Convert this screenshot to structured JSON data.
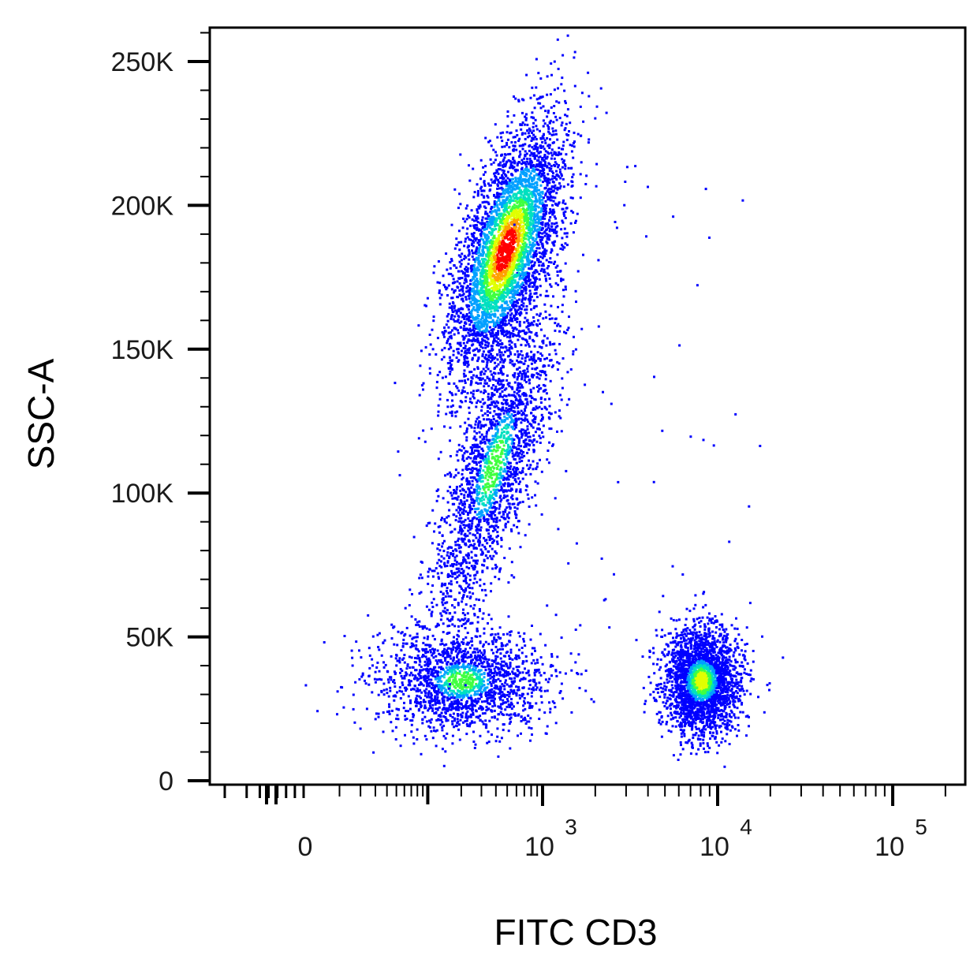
{
  "chart_data": {
    "type": "scatter",
    "subtype": "density-dot-plot",
    "title": "",
    "xlabel": "FITC CD3",
    "ylabel": "SSC-A",
    "x_scale": "biexponential",
    "xlim": [
      -200,
      200000
    ],
    "ylim": [
      0,
      262144
    ],
    "grid": false,
    "legend": "none",
    "y_ticks": [
      {
        "value": 0,
        "label": "0"
      },
      {
        "value": 50000,
        "label": "50K"
      },
      {
        "value": 100000,
        "label": "100K"
      },
      {
        "value": 150000,
        "label": "150K"
      },
      {
        "value": 200000,
        "label": "200K"
      },
      {
        "value": 250000,
        "label": "250K"
      }
    ],
    "x_ticks": [
      {
        "value": 0,
        "base": "0",
        "exp": ""
      },
      {
        "value": 1000,
        "base": "10",
        "exp": "3"
      },
      {
        "value": 10000,
        "base": "10",
        "exp": "4"
      },
      {
        "value": 100000,
        "base": "10",
        "exp": "5"
      }
    ],
    "populations": [
      {
        "name": "",
        "x_center": 200,
        "y_center": 35000,
        "x_spread": 0.55,
        "y_spread": 9000,
        "count": 1800
      },
      {
        "name": "",
        "x_center": 380,
        "y_center": 110000,
        "x_spread": 0.3,
        "y_spread": 28000,
        "count": 2200
      },
      {
        "name": "",
        "x_center": 480,
        "y_center": 185000,
        "x_spread": 0.32,
        "y_spread": 22000,
        "count": 4200
      },
      {
        "name": "",
        "x_center": 8000,
        "y_center": 35000,
        "x_spread": 0.25,
        "y_spread": 9000,
        "count": 2600
      }
    ],
    "density_colors": [
      "#0000ff",
      "#00a0ff",
      "#00e0c0",
      "#40ff40",
      "#e0ff00",
      "#ffa000",
      "#ff0000"
    ]
  }
}
